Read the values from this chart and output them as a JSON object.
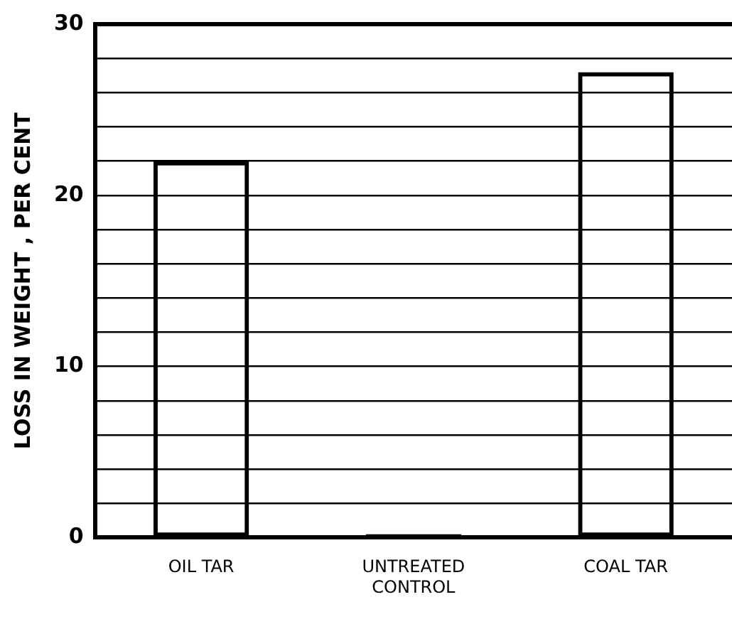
{
  "chart_data": {
    "type": "bar",
    "ylabel": "LOSS IN WEIGHT , PER CENT",
    "categories": [
      "OIL TAR",
      "UNTREATED\nCONTROL",
      "COAL TAR"
    ],
    "values": [
      22.0,
      0.2,
      27.2
    ],
    "color": "#000000",
    "ylim": [
      0,
      30
    ],
    "yticks": [
      0,
      {
        "value": 2,
        "label": null
      },
      {
        "value": 4,
        "label": null
      },
      {
        "value": 6,
        "label": null
      },
      {
        "value": 8,
        "label": null
      },
      10,
      {
        "value": 12,
        "label": null
      },
      {
        "value": 14,
        "label": null
      },
      {
        "value": 16,
        "label": null
      },
      {
        "value": 18,
        "label": null
      },
      20,
      {
        "value": 22,
        "label": null
      },
      {
        "value": 24,
        "label": null
      },
      {
        "value": 26,
        "label": null
      },
      {
        "value": 28,
        "label": null
      },
      30
    ],
    "grid": "y",
    "legend": false
  }
}
